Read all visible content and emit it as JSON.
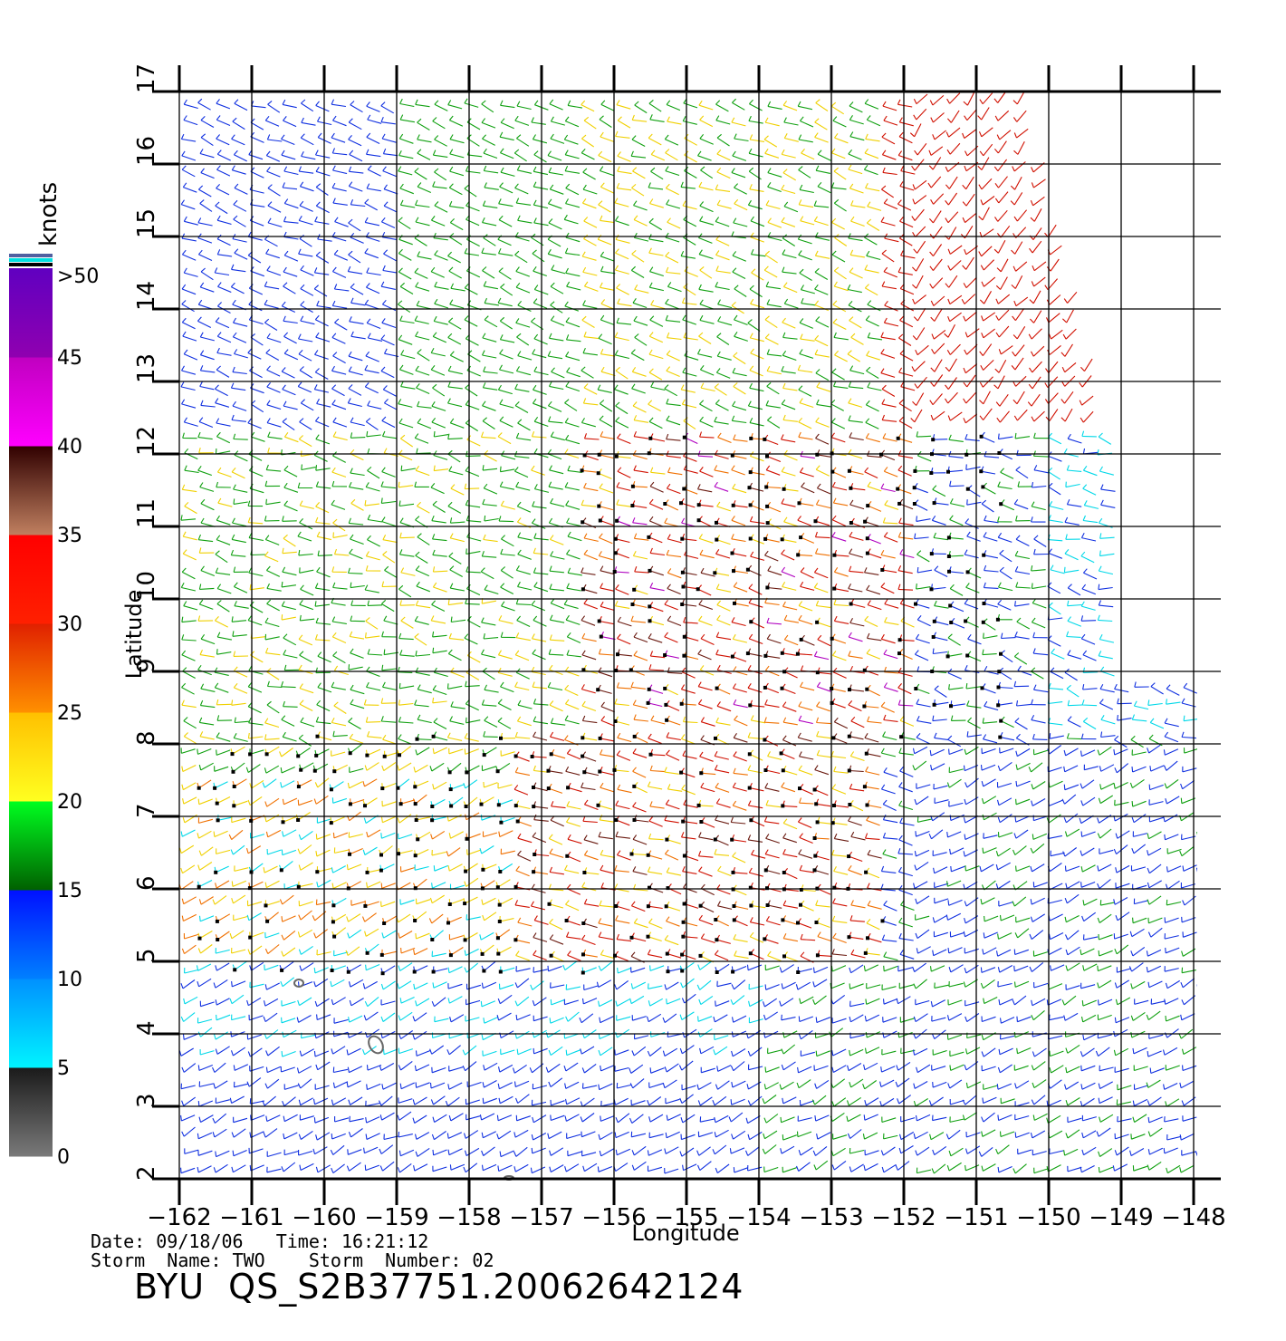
{
  "colorbar": {
    "unit_label": "knots",
    "tick_labels": [
      "0",
      "5",
      "10",
      "15",
      "20",
      "25",
      "30",
      "35",
      "40",
      "45",
      ">50"
    ],
    "bands": [
      {
        "from": 0,
        "to": 5,
        "colors": [
          "#7a7a7a",
          "#1a1a1a"
        ]
      },
      {
        "from": 5,
        "to": 10,
        "colors": [
          "#00f4ff",
          "#0090ff"
        ]
      },
      {
        "from": 10,
        "to": 15,
        "colors": [
          "#0080ff",
          "#0010ff"
        ]
      },
      {
        "from": 15,
        "to": 20,
        "colors": [
          "#006000",
          "#00ff20"
        ]
      },
      {
        "from": 20,
        "to": 25,
        "colors": [
          "#ffff20",
          "#ffc000"
        ]
      },
      {
        "from": 25,
        "to": 30,
        "colors": [
          "#ff9000",
          "#e02000"
        ]
      },
      {
        "from": 30,
        "to": 35,
        "colors": [
          "#ff2000",
          "#ff0000"
        ]
      },
      {
        "from": 35,
        "to": 40,
        "colors": [
          "#c08060",
          "#300000"
        ]
      },
      {
        "from": 40,
        "to": 45,
        "colors": [
          "#ff00ff",
          "#c000c0"
        ]
      },
      {
        "from": 45,
        "to": 50,
        "colors": [
          "#9000b0",
          "#6000c0"
        ]
      }
    ],
    "top_stripes": [
      "#5060a0",
      "#00e0e0",
      "#000000"
    ]
  },
  "map": {
    "x_axis_label": "Longitude",
    "y_axis_label": "Latitude",
    "lon_ticks": [
      "−162",
      "−161",
      "−160",
      "−159",
      "−158",
      "−157",
      "−156",
      "−155",
      "−154",
      "−153",
      "−152",
      "−151",
      "−150",
      "−149",
      "−148"
    ],
    "lat_ticks": [
      "2",
      "3",
      "4",
      "5",
      "6",
      "7",
      "8",
      "9",
      "10",
      "11",
      "12",
      "13",
      "14",
      "15",
      "16",
      "17"
    ],
    "lon_range": [
      -162,
      -147.5
    ],
    "lat_range": [
      2,
      17
    ]
  },
  "info": {
    "date_time": "Date: 09/18/06   Time: 16:21:12",
    "storm": "Storm  Name: TWO    Storm  Number: 02",
    "title": "BYU  QS_S2B37751.20062642124"
  },
  "speed_colors": {
    "calm": "#555555",
    "light": "#00d8e8",
    "moderate": "#1030e0",
    "fresh": "#10a010",
    "strong": "#f0d000",
    "near_gale": "#f07000",
    "gale": "#d01000",
    "storm": "#6a1a10",
    "violent": "#b000c0"
  }
}
